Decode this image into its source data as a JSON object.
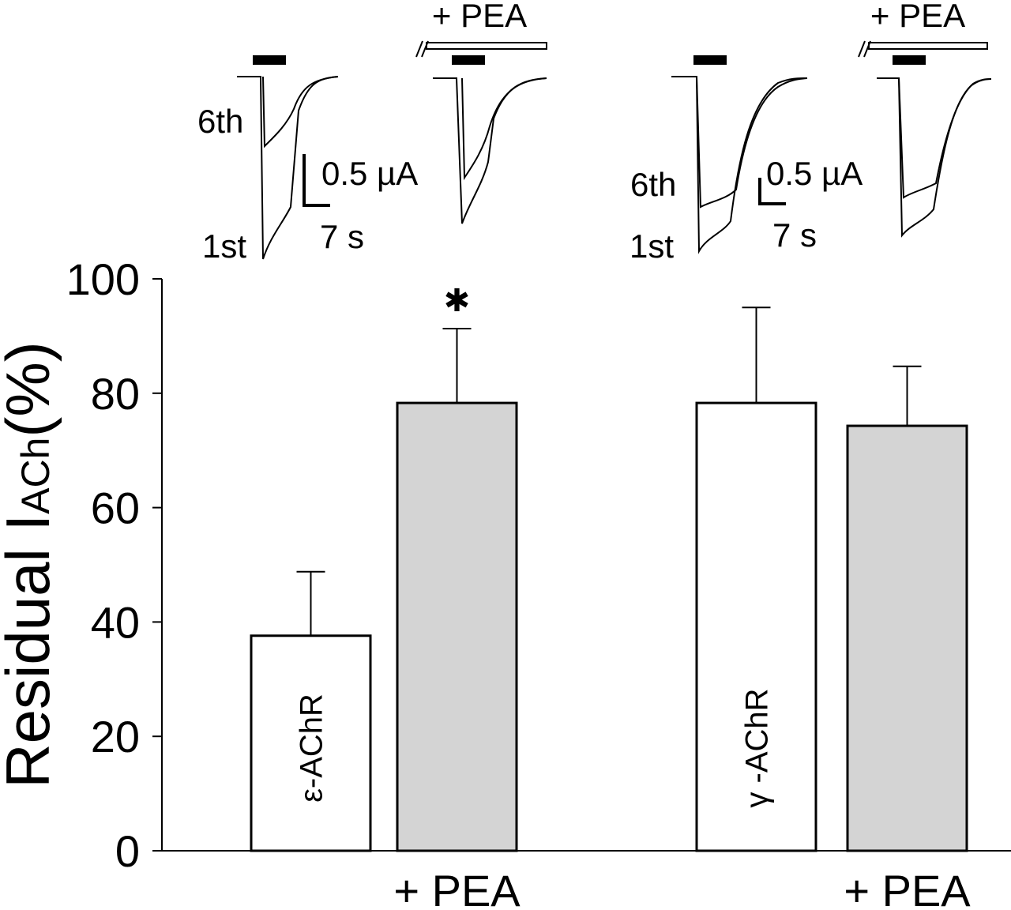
{
  "chart_data": {
    "type": "bar",
    "categories": [
      "ε-AChR",
      "+ PEA",
      "γ -AChR",
      "+ PEA"
    ],
    "values": [
      37.6,
      78.3,
      78.3,
      74.3
    ],
    "errors": [
      11.2,
      13.0,
      16.7,
      10.4
    ],
    "colors": [
      "#ffffff",
      "#d4d4d4",
      "#ffffff",
      "#d4d4d4"
    ],
    "ylim": [
      0,
      100
    ],
    "yticks": [
      0,
      20,
      40,
      60,
      80,
      100
    ],
    "y_label": [
      "Residual I",
      "ACh",
      "(%)"
    ],
    "annotation": "✱"
  },
  "insets": [
    {
      "later": "6th",
      "first": "1st",
      "current_scale": "0.5 µA",
      "time_scale": "7 s"
    },
    {
      "treatment": "+ PEA"
    },
    {
      "later": "6th",
      "first": "1st",
      "current_scale": "0.5 µA",
      "time_scale": "7 s"
    },
    {
      "treatment": "+ PEA"
    }
  ]
}
